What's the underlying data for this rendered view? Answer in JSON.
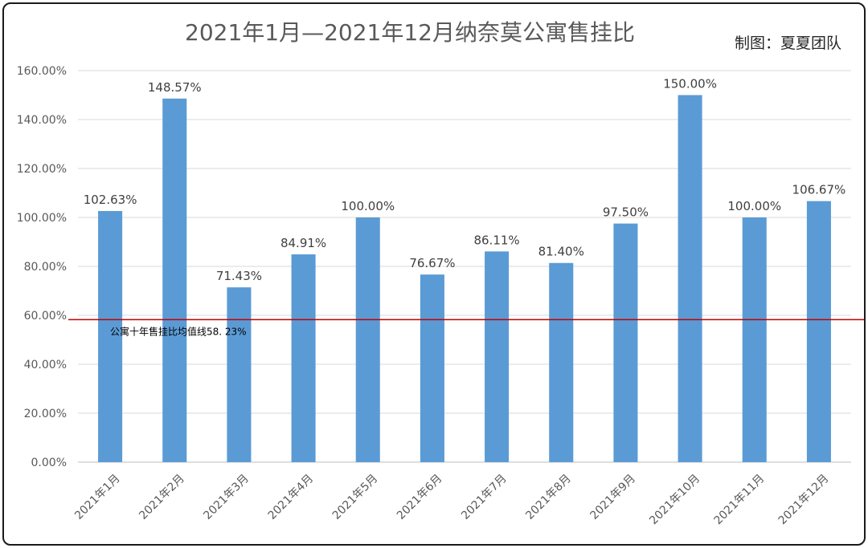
{
  "chart_data": {
    "type": "bar",
    "title": "2021年1月—2021年12月纳奈莫公寓售挂比",
    "credit": "制图：夏夏团队",
    "categories": [
      "2021年1月",
      "2021年2月",
      "2021年3月",
      "2021年4月",
      "2021年5月",
      "2021年6月",
      "2021年7月",
      "2021年8月",
      "2021年9月",
      "2021年10月",
      "2021年11月",
      "2021年12月"
    ],
    "values": [
      102.63,
      148.57,
      71.43,
      84.91,
      100.0,
      76.67,
      86.11,
      81.4,
      97.5,
      150.0,
      100.0,
      106.67
    ],
    "value_labels": [
      "102.63%",
      "148.57%",
      "71.43%",
      "84.91%",
      "100.00%",
      "76.67%",
      "86.11%",
      "81.40%",
      "97.50%",
      "150.00%",
      "100.00%",
      "106.67%"
    ],
    "ylim": [
      0,
      160
    ],
    "yticks": [
      0,
      20,
      40,
      60,
      80,
      100,
      120,
      140,
      160
    ],
    "ytick_labels": [
      "0.00%",
      "20.00%",
      "40.00%",
      "60.00%",
      "80.00%",
      "100.00%",
      "120.00%",
      "140.00%",
      "160.00%"
    ],
    "grid": true,
    "bar_color": "#5b9bd5",
    "reference_line": {
      "value": 58.23,
      "label": "公寓十年售挂比均值线58. 23%",
      "color": "#c00000"
    }
  }
}
